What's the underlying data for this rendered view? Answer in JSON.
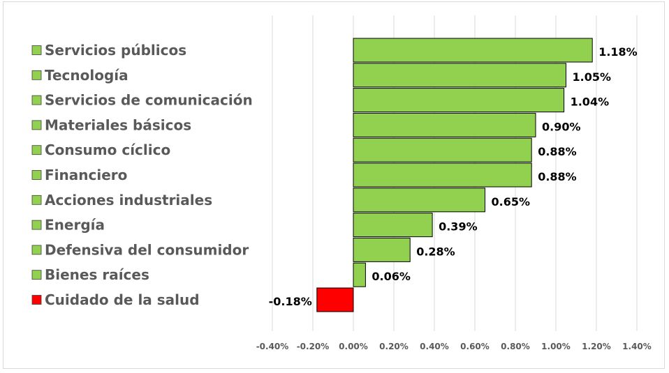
{
  "chart_data": {
    "type": "bar",
    "orientation": "horizontal",
    "categories": [
      "Servicios públicos",
      "Tecnología",
      "Servicios de comunicación",
      "Materiales básicos",
      "Consumo cíclico",
      "Financiero",
      "Acciones industriales",
      "Energía",
      "Defensiva del consumidor",
      "Bienes raíces",
      "Cuidado de la salud"
    ],
    "values": [
      1.18,
      1.05,
      1.04,
      0.9,
      0.88,
      0.88,
      0.65,
      0.39,
      0.28,
      0.06,
      -0.18
    ],
    "value_labels": [
      "1.18%",
      "1.05%",
      "1.04%",
      "0.90%",
      "0.88%",
      "0.88%",
      "0.65%",
      "0.39%",
      "0.28%",
      "0.06%",
      "-0.18%"
    ],
    "xlim": [
      -0.4,
      1.4
    ],
    "xticks": [
      -0.4,
      -0.2,
      0.0,
      0.2,
      0.4,
      0.6,
      0.8,
      1.0,
      1.2,
      1.4
    ],
    "xtick_labels": [
      "-0.40%",
      "-0.20%",
      "0.00%",
      "0.20%",
      "0.40%",
      "0.60%",
      "0.80%",
      "1.00%",
      "1.20%",
      "1.40%"
    ],
    "grid": true,
    "legend_position": "left",
    "colors": {
      "positive": "#92d050",
      "negative": "#ff0000",
      "border": "#000000",
      "grid": "#d9d9d9"
    }
  }
}
